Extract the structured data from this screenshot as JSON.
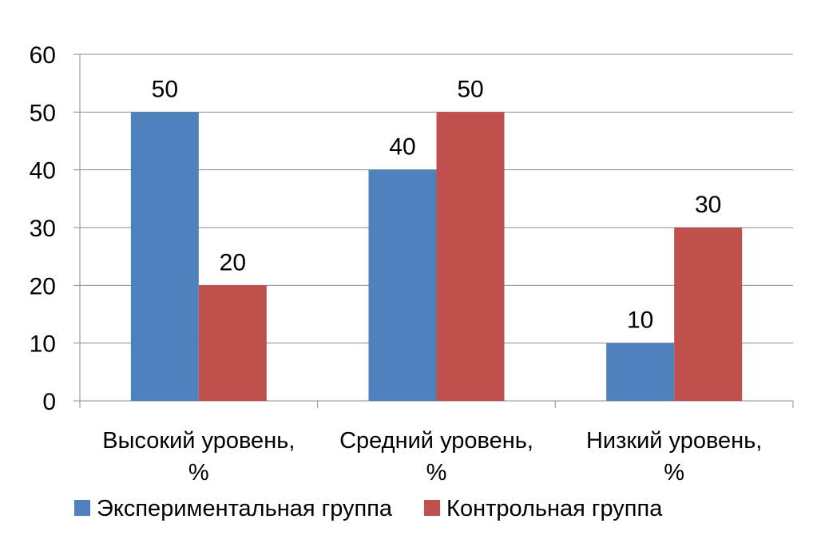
{
  "chart_data": {
    "type": "bar",
    "categories": [
      [
        "Высокий уровень,",
        "%"
      ],
      [
        "Средний уровень,",
        "%"
      ],
      [
        "Низкий уровень,",
        "%"
      ]
    ],
    "series": [
      {
        "name": "Экспериментальная группа",
        "values": [
          50,
          40,
          10
        ],
        "color": "#4F81BD"
      },
      {
        "name": "Контрольная группа",
        "values": [
          20,
          50,
          30
        ],
        "color": "#C0504D"
      }
    ],
    "ylim": [
      0,
      60
    ],
    "yticks": [
      0,
      10,
      20,
      30,
      40,
      50,
      60
    ],
    "grid": true,
    "legend": "bottom",
    "data_labels": true
  }
}
